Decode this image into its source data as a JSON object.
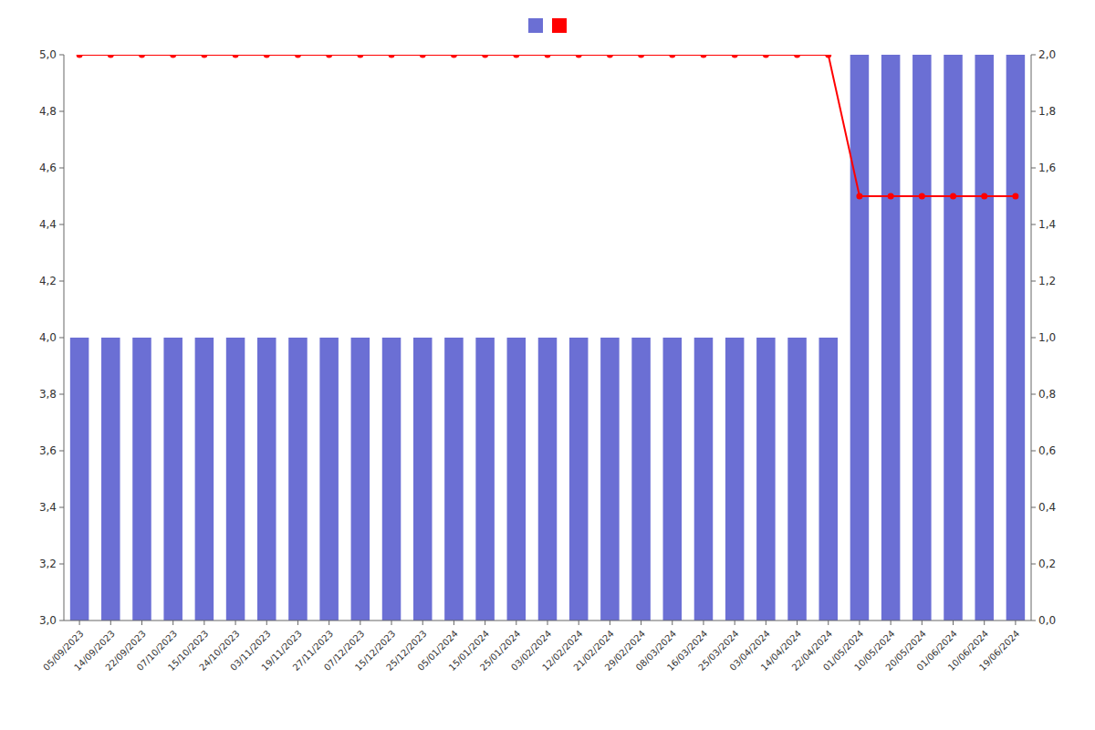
{
  "chart_data": {
    "type": "bar",
    "categories": [
      "05/09/2023",
      "14/09/2023",
      "22/09/2023",
      "07/10/2023",
      "15/10/2023",
      "24/10/2023",
      "03/11/2023",
      "19/11/2023",
      "27/11/2023",
      "07/12/2023",
      "15/12/2023",
      "25/12/2023",
      "05/01/2024",
      "15/01/2024",
      "25/01/2024",
      "03/02/2024",
      "12/02/2024",
      "21/02/2024",
      "29/02/2024",
      "08/03/2024",
      "16/03/2024",
      "25/03/2024",
      "03/04/2024",
      "14/04/2024",
      "22/04/2024",
      "01/05/2024",
      "10/05/2024",
      "20/05/2024",
      "01/06/2024",
      "10/06/2024",
      "19/06/2024"
    ],
    "series": [
      {
        "type": "bar",
        "axis": "y2",
        "color": "#6B6FD4",
        "values": [
          1,
          1,
          1,
          1,
          1,
          1,
          1,
          1,
          1,
          1,
          1,
          1,
          1,
          1,
          1,
          1,
          1,
          1,
          1,
          1,
          1,
          1,
          1,
          1,
          1,
          2,
          2,
          2,
          2,
          2,
          2
        ]
      },
      {
        "type": "line",
        "color": "#FF0000",
        "marker": "circle",
        "values": [
          5.0,
          5.0,
          5.0,
          5.0,
          5.0,
          5.0,
          5.0,
          5.0,
          5.0,
          5.0,
          5.0,
          5.0,
          5.0,
          5.0,
          5.0,
          5.0,
          5.0,
          5.0,
          5.0,
          5.0,
          5.0,
          5.0,
          5.0,
          5.0,
          5.0,
          4.5,
          4.5,
          4.5,
          4.5,
          4.5,
          4.5
        ]
      }
    ],
    "ylim": [
      3.0,
      5.0
    ],
    "yticks": [
      {
        "value": 3.0,
        "label": "3,0"
      },
      {
        "value": 3.2,
        "label": "3,2"
      },
      {
        "value": 3.4,
        "label": "3,4"
      },
      {
        "value": 3.6,
        "label": "3,6"
      },
      {
        "value": 3.8,
        "label": "3,8"
      },
      {
        "value": 4.0,
        "label": "4,0"
      },
      {
        "value": 4.2,
        "label": "4,2"
      },
      {
        "value": 4.4,
        "label": "4,4"
      },
      {
        "value": 4.6,
        "label": "4,6"
      },
      {
        "value": 4.8,
        "label": "4,8"
      },
      {
        "value": 5.0,
        "label": "5,0"
      }
    ],
    "y2lim": [
      0.0,
      2.0
    ],
    "y2ticks": [
      {
        "value": 0.0,
        "label": "0,0"
      },
      {
        "value": 0.2,
        "label": "0,2"
      },
      {
        "value": 0.4,
        "label": "0,4"
      },
      {
        "value": 0.6,
        "label": "0,6"
      },
      {
        "value": 0.8,
        "label": "0,8"
      },
      {
        "value": 1.0,
        "label": "1,0"
      },
      {
        "value": 1.2,
        "label": "1,2"
      },
      {
        "value": 1.4,
        "label": "1,4"
      },
      {
        "value": 1.6,
        "label": "1,6"
      },
      {
        "value": 1.8,
        "label": "1,8"
      },
      {
        "value": 2.0,
        "label": "2,0"
      }
    ],
    "grid": false,
    "legend": "top"
  }
}
